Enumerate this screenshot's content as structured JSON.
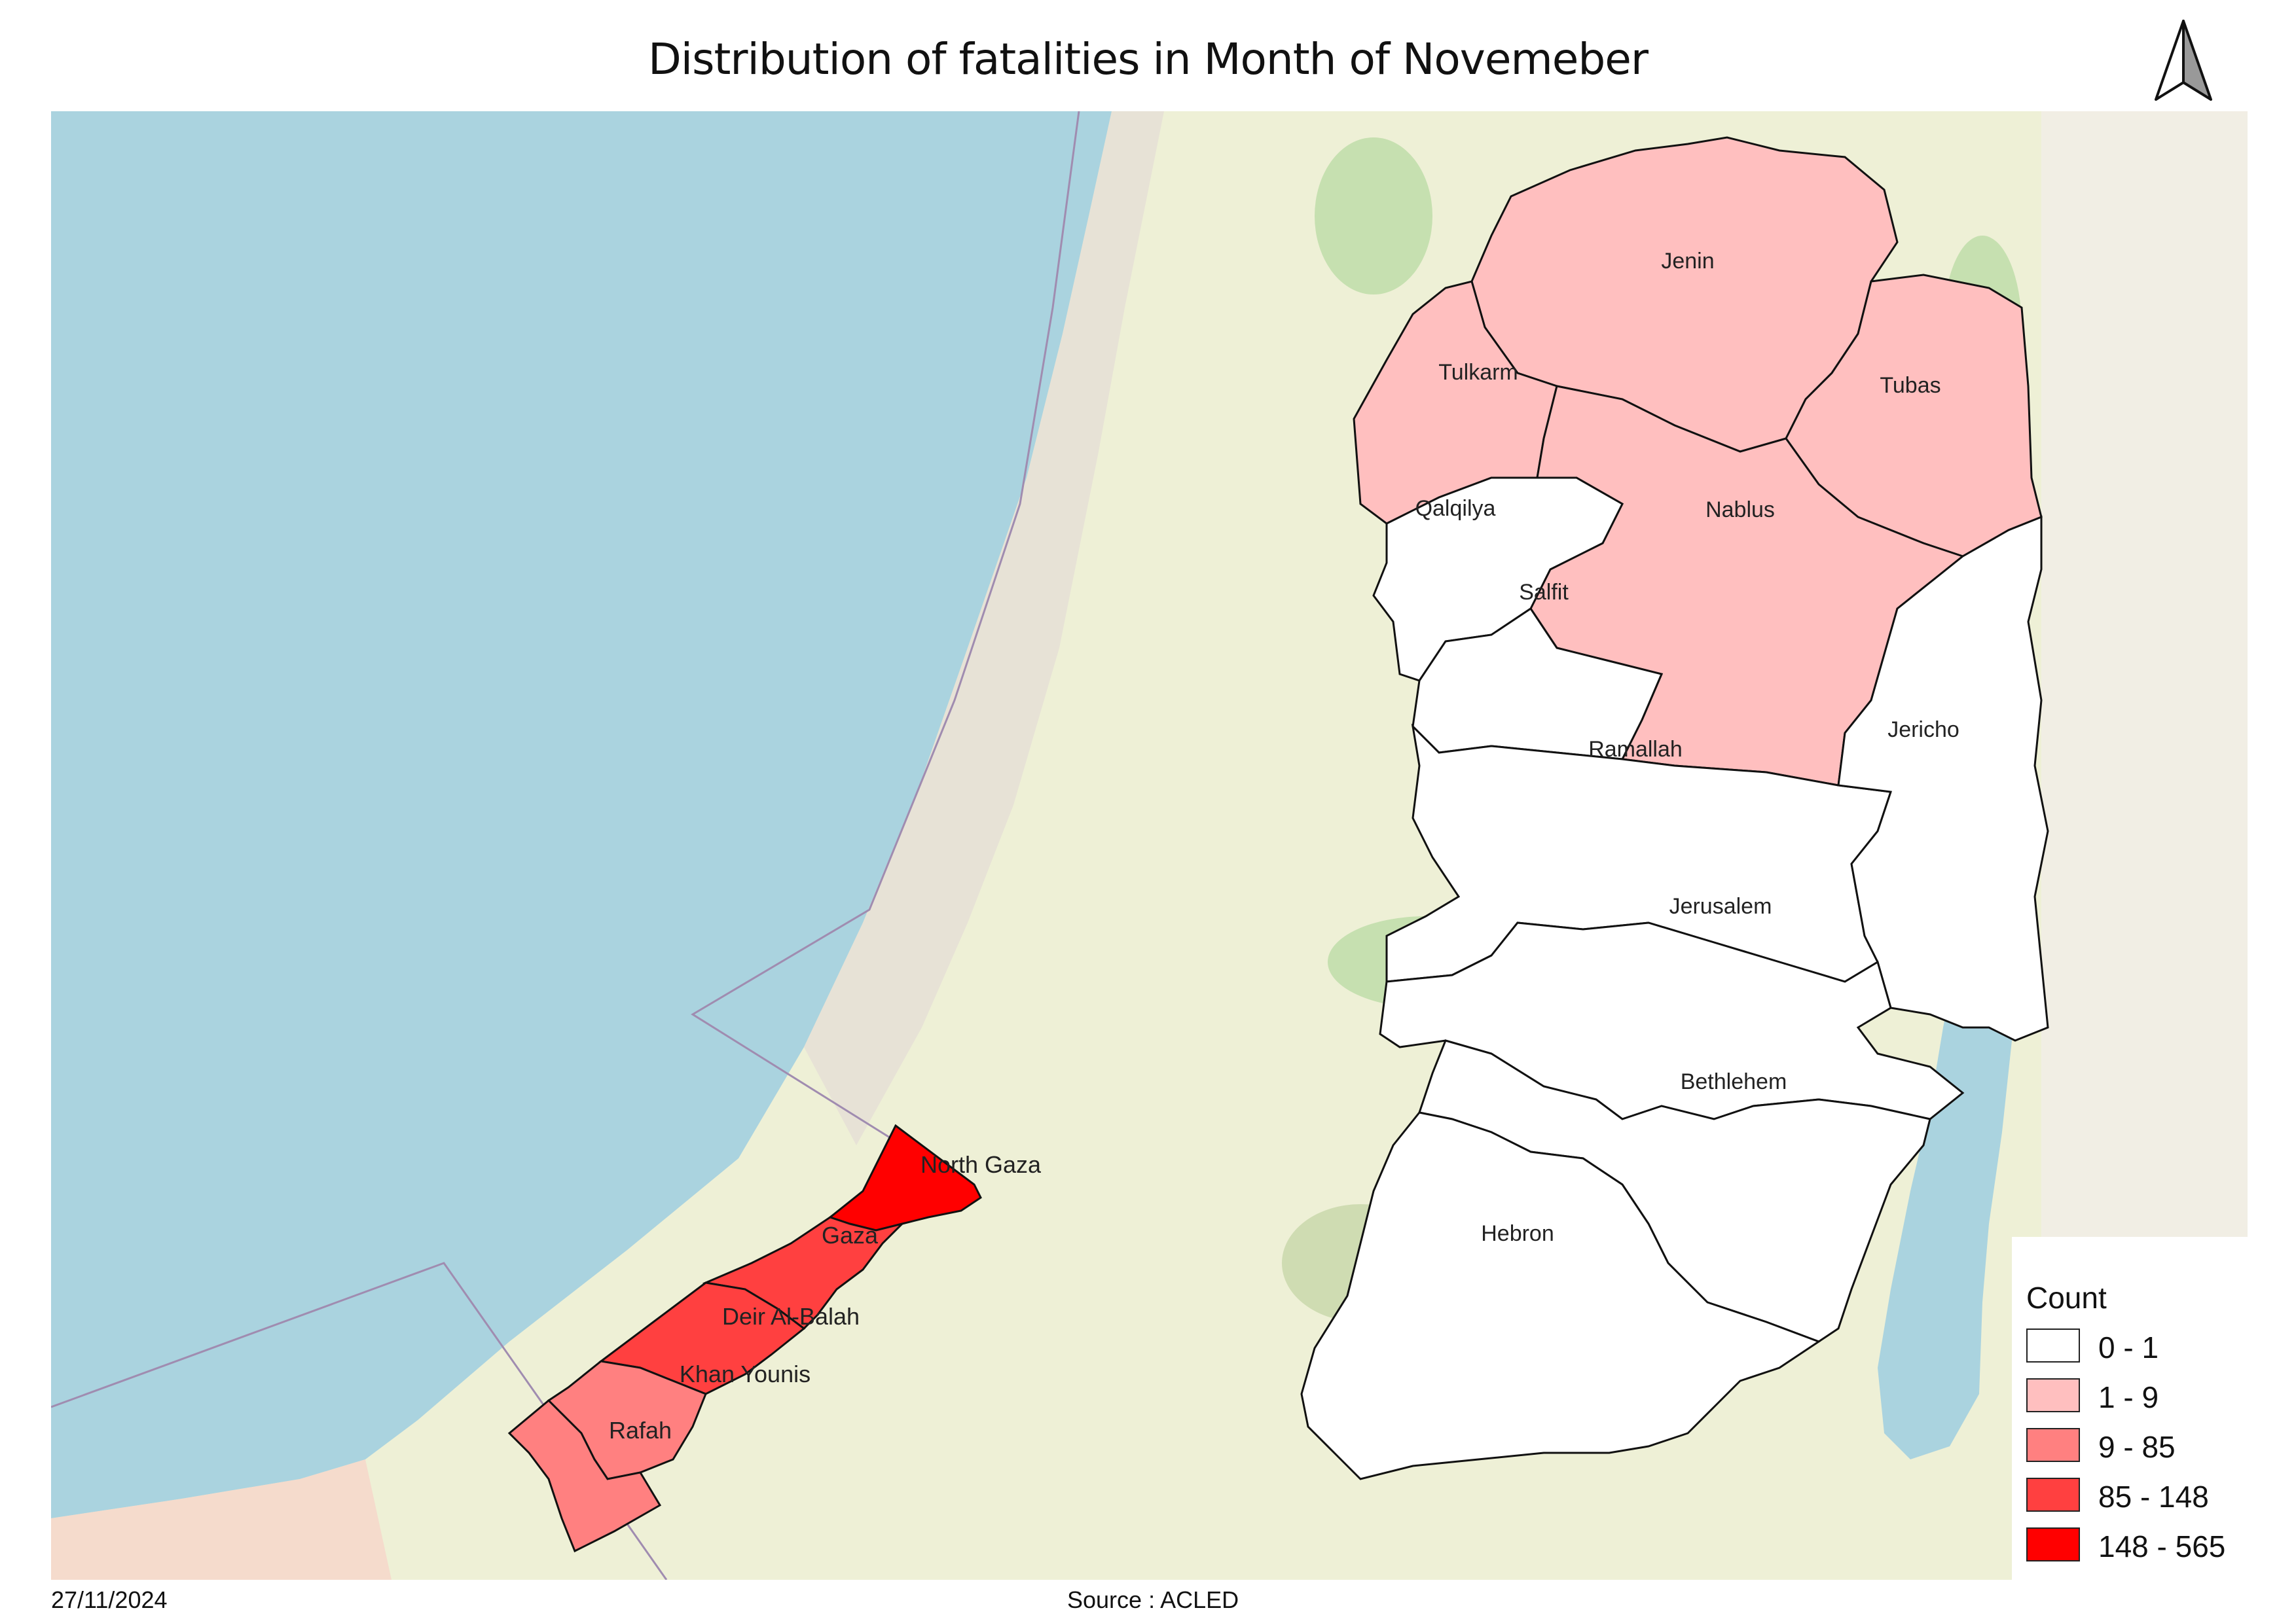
{
  "title": "Distribution of  fatalities in Month of Novemeber",
  "date": "27/11/2024",
  "source": "Source : ACLED",
  "legend": {
    "title": "Count",
    "classes": [
      {
        "label": "0 - 1",
        "color": "#ffffff"
      },
      {
        "label": "1 - 9",
        "color": "#ffbfbf"
      },
      {
        "label": "9 - 85",
        "color": "#ff8080"
      },
      {
        "label": "85 - 148",
        "color": "#ff4040"
      },
      {
        "label": "148 - 565",
        "color": "#ff0000"
      }
    ]
  },
  "regions": {
    "jenin": {
      "name": "Jenin",
      "class": "1 - 9"
    },
    "tulkarm": {
      "name": "Tulkarm",
      "class": "1 - 9"
    },
    "tubas": {
      "name": "Tubas",
      "class": "1 - 9"
    },
    "nablus": {
      "name": "Nablus",
      "class": "1 - 9"
    },
    "qalqilya": {
      "name": "Qalqilya",
      "class": "0 - 1"
    },
    "salfit": {
      "name": "Salfit",
      "class": "0 - 1"
    },
    "ramallah": {
      "name": "Ramallah",
      "class": "0 - 1"
    },
    "jericho": {
      "name": "Jericho",
      "class": "0 - 1"
    },
    "jerusalem": {
      "name": "Jerusalem",
      "class": "0 - 1"
    },
    "bethlehem": {
      "name": "Bethlehem",
      "class": "0 - 1"
    },
    "hebron": {
      "name": "Hebron",
      "class": "0 - 1"
    },
    "north_gaza": {
      "name": "North Gaza",
      "class": "148 - 565"
    },
    "gaza": {
      "name": "Gaza",
      "class": "85 - 148"
    },
    "deir_al_balah": {
      "name": "Deir Al-Balah",
      "class": "85 - 148"
    },
    "khan_younis": {
      "name": "Khan Younis",
      "class": "9 - 85"
    },
    "rafah": {
      "name": "Rafah",
      "class": "9 - 85"
    }
  },
  "basemap": {
    "sea_color": "#aad3df",
    "land_color": "#eef0d6",
    "dead_sea_color": "#aad3df"
  }
}
